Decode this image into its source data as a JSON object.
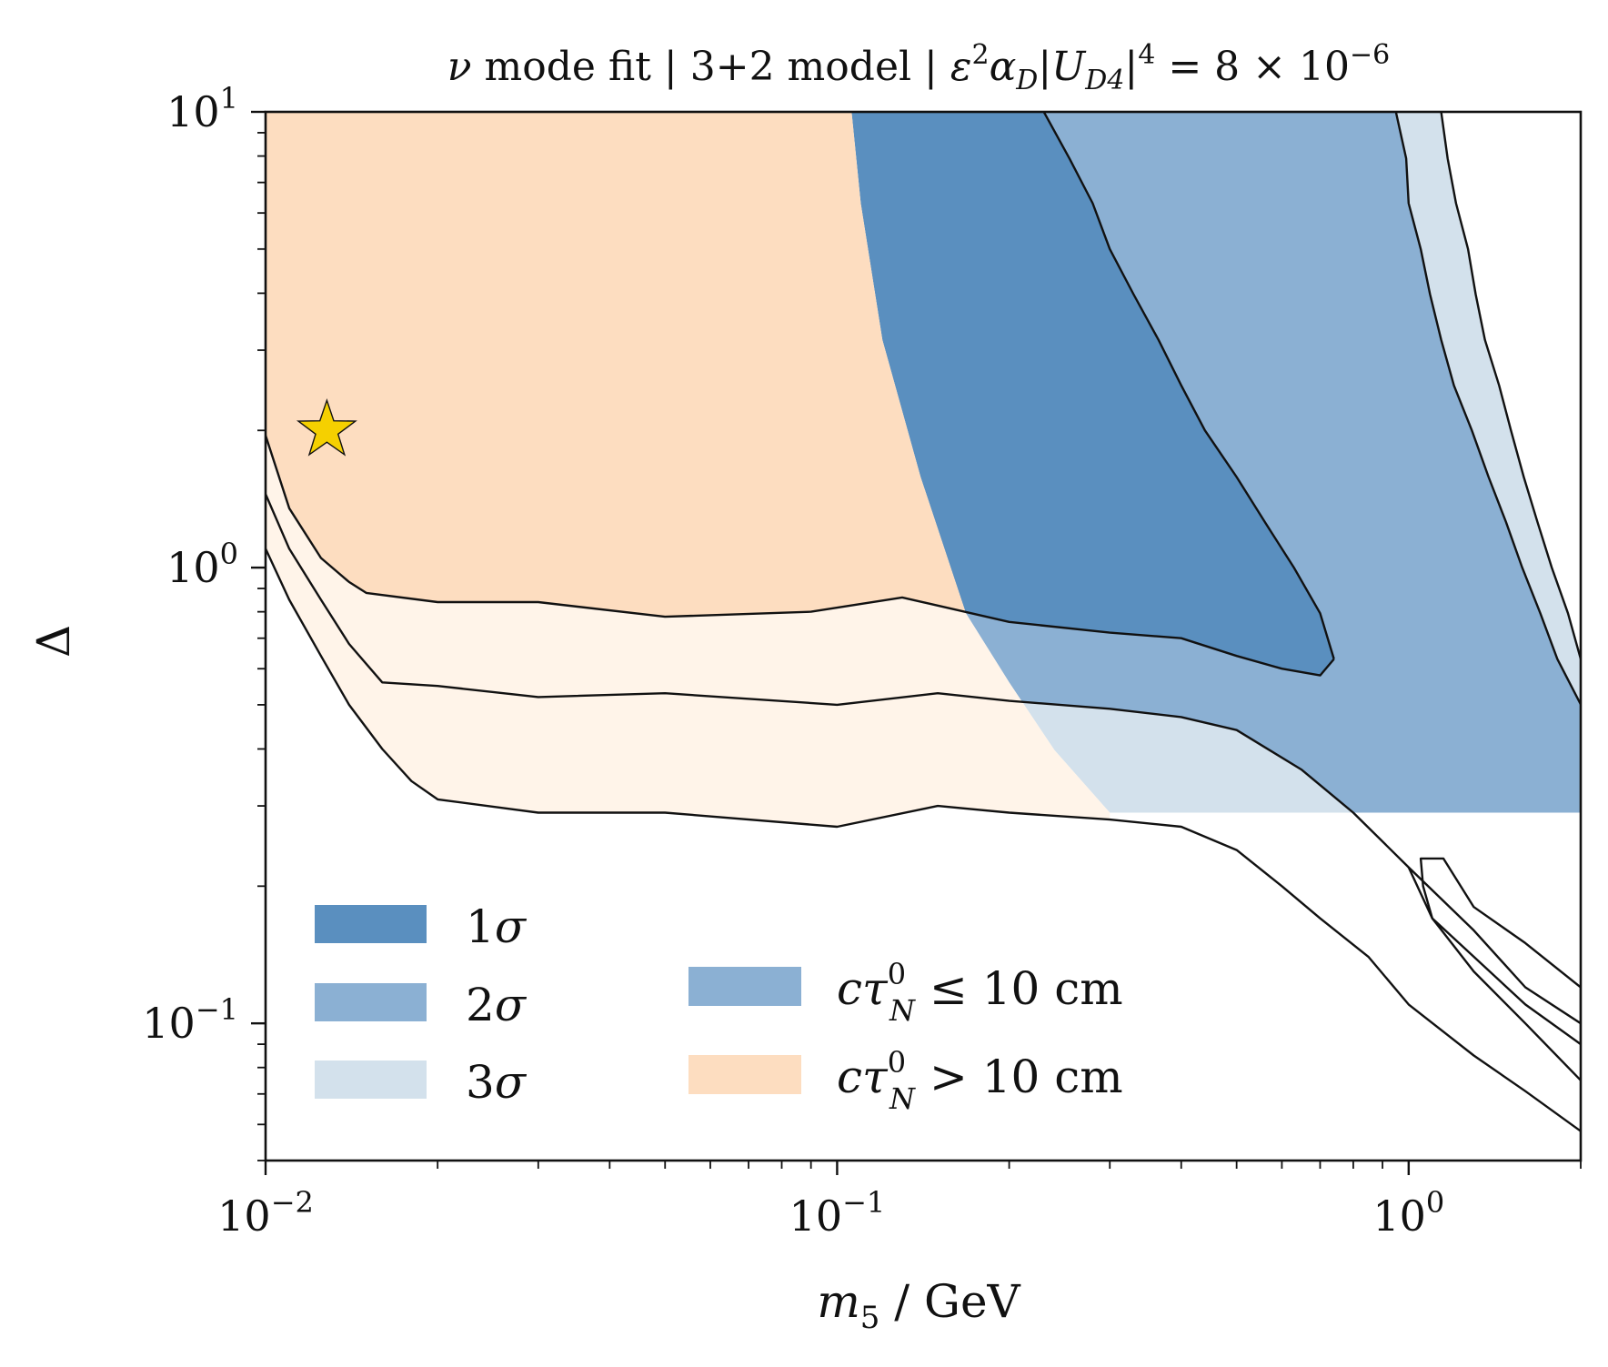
{
  "chart_data": {
    "type": "contour",
    "title": "ν mode fit | 3+2 model | ε²α_D|U_D4|⁴ = 8 × 10⁻⁶",
    "title_parts": {
      "prefix": "ν",
      "text1": " mode fit | 3+2 model | ",
      "eps": "ε",
      "sup2": "2",
      "alpha": "α",
      "subD": "D",
      "U": "|U",
      "subD4": "D4",
      "pipe": "|",
      "sup4": "4",
      "eq": " = 8 × 10",
      "exp": "−6"
    },
    "xlabel": {
      "m": "m",
      "sub": "5",
      "unit": " / GeV"
    },
    "ylabel": "Δ",
    "xscale": "log",
    "yscale": "log",
    "xlim": [
      0.01,
      2.0
    ],
    "ylim": [
      0.05,
      10
    ],
    "x_ticks": [
      {
        "value": 0.01,
        "base": "10",
        "exp": "−2"
      },
      {
        "value": 0.1,
        "base": "10",
        "exp": "−1"
      },
      {
        "value": 1,
        "base": "10",
        "exp": "0"
      }
    ],
    "y_ticks": [
      {
        "value": 0.1,
        "base": "10",
        "exp": "−1"
      },
      {
        "value": 1,
        "base": "10",
        "exp": "0"
      },
      {
        "value": 10,
        "base": "10",
        "exp": "1"
      }
    ],
    "colors": {
      "sigma1": "#5a8fbf",
      "sigma2": "#8bb0d3",
      "sigma3": "#d3e1ec",
      "long_lived_1": "#fdddc0",
      "long_lived_3": "#fff4e9",
      "star": "#f5d000"
    },
    "best_fit": {
      "x": 0.0128,
      "y": 2.0
    },
    "decay_boundary": {
      "name": "cτ⁰_N = 10 cm",
      "points": [
        [
          0.106,
          10
        ],
        [
          0.11,
          6.3
        ],
        [
          0.12,
          3.16
        ],
        [
          0.14,
          1.58
        ],
        [
          0.168,
          0.794
        ],
        [
          0.2,
          0.56
        ],
        [
          0.24,
          0.398
        ],
        [
          0.3,
          0.29
        ]
      ]
    },
    "contours": {
      "sigma3_upper": [
        [
          1.14,
          10
        ],
        [
          1.17,
          7.9
        ],
        [
          1.21,
          6.3
        ],
        [
          1.27,
          5.0
        ],
        [
          1.31,
          3.98
        ],
        [
          1.36,
          3.16
        ],
        [
          1.44,
          2.51
        ],
        [
          1.51,
          2.0
        ],
        [
          1.59,
          1.58
        ],
        [
          1.68,
          1.26
        ],
        [
          1.78,
          1.0
        ],
        [
          1.9,
          0.794
        ],
        [
          2.0,
          0.63
        ]
      ],
      "sigma2_upper": [
        [
          0.95,
          10
        ],
        [
          0.99,
          7.9
        ],
        [
          1.0,
          6.3
        ],
        [
          1.05,
          5.0
        ],
        [
          1.09,
          3.98
        ],
        [
          1.14,
          3.16
        ],
        [
          1.2,
          2.51
        ],
        [
          1.29,
          2.0
        ],
        [
          1.38,
          1.58
        ],
        [
          1.48,
          1.26
        ],
        [
          1.58,
          1.0
        ],
        [
          1.7,
          0.794
        ],
        [
          1.82,
          0.63
        ],
        [
          2.0,
          0.501
        ]
      ],
      "sigma1_upper": [
        [
          0.23,
          10
        ],
        [
          0.255,
          7.9
        ],
        [
          0.28,
          6.3
        ],
        [
          0.3,
          5.0
        ],
        [
          0.33,
          3.98
        ],
        [
          0.365,
          3.16
        ],
        [
          0.4,
          2.51
        ],
        [
          0.44,
          2.0
        ],
        [
          0.5,
          1.58
        ],
        [
          0.56,
          1.26
        ],
        [
          0.63,
          1.0
        ],
        [
          0.7,
          0.794
        ],
        [
          0.74,
          0.63
        ]
      ],
      "sigma1_lower": [
        [
          0.01,
          1.95
        ],
        [
          0.011,
          1.35
        ],
        [
          0.0125,
          1.05
        ],
        [
          0.014,
          0.93
        ],
        [
          0.015,
          0.88
        ],
        [
          0.02,
          0.84
        ],
        [
          0.03,
          0.84
        ],
        [
          0.05,
          0.78
        ],
        [
          0.09,
          0.8
        ],
        [
          0.13,
          0.86
        ],
        [
          0.2,
          0.76
        ],
        [
          0.3,
          0.72
        ],
        [
          0.4,
          0.7
        ],
        [
          0.5,
          0.64
        ],
        [
          0.6,
          0.6
        ],
        [
          0.7,
          0.58
        ],
        [
          0.74,
          0.63
        ]
      ],
      "sigma2_lower": [
        [
          0.01,
          1.45
        ],
        [
          0.011,
          1.1
        ],
        [
          0.0125,
          0.85
        ],
        [
          0.014,
          0.68
        ],
        [
          0.016,
          0.56
        ],
        [
          0.02,
          0.55
        ],
        [
          0.03,
          0.52
        ],
        [
          0.05,
          0.53
        ],
        [
          0.1,
          0.5
        ],
        [
          0.15,
          0.53
        ],
        [
          0.2,
          0.51
        ],
        [
          0.3,
          0.49
        ],
        [
          0.4,
          0.47
        ],
        [
          0.5,
          0.44
        ],
        [
          0.65,
          0.36
        ],
        [
          0.8,
          0.29
        ],
        [
          1.0,
          0.22
        ],
        [
          1.3,
          0.16
        ],
        [
          1.6,
          0.12
        ],
        [
          2.0,
          0.1
        ]
      ],
      "sigma3_lower": [
        [
          0.01,
          1.1
        ],
        [
          0.011,
          0.85
        ],
        [
          0.0125,
          0.64
        ],
        [
          0.014,
          0.5
        ],
        [
          0.016,
          0.4
        ],
        [
          0.018,
          0.34
        ],
        [
          0.02,
          0.31
        ],
        [
          0.03,
          0.29
        ],
        [
          0.05,
          0.29
        ],
        [
          0.1,
          0.27
        ],
        [
          0.15,
          0.3
        ],
        [
          0.2,
          0.29
        ],
        [
          0.3,
          0.28
        ],
        [
          0.4,
          0.27
        ],
        [
          0.5,
          0.24
        ],
        [
          0.6,
          0.2
        ],
        [
          0.7,
          0.17
        ],
        [
          0.85,
          0.14
        ],
        [
          1.0,
          0.11
        ],
        [
          1.3,
          0.085
        ],
        [
          1.6,
          0.071
        ],
        [
          2.0,
          0.058
        ]
      ],
      "sigma1_island": [
        [
          1.05,
          0.23
        ],
        [
          1.15,
          0.23
        ],
        [
          1.3,
          0.18
        ],
        [
          1.6,
          0.15
        ],
        [
          2.0,
          0.12
        ],
        [
          2.0,
          0.09
        ],
        [
          1.6,
          0.11
        ],
        [
          1.3,
          0.14
        ],
        [
          1.1,
          0.17
        ],
        [
          1.06,
          0.2
        ]
      ],
      "sigma2_island_lower": [
        [
          1.0,
          0.22
        ],
        [
          1.1,
          0.17
        ],
        [
          1.3,
          0.13
        ],
        [
          1.6,
          0.1
        ],
        [
          2.0,
          0.075
        ]
      ]
    },
    "legend": [
      {
        "label": "1σ",
        "num": "1",
        "sym": "σ",
        "color": "#5a8fbf"
      },
      {
        "label": "2σ",
        "num": "2",
        "sym": "σ",
        "color": "#8bb0d3"
      },
      {
        "label": "3σ",
        "num": "3",
        "sym": "σ",
        "color": "#d3e1ec"
      },
      {
        "label": "cτ⁰_N ≤ 10 cm",
        "c": "c",
        "tau": "τ",
        "sup": "0",
        "sub": "N",
        "rest": " ≤ 10 cm",
        "color": "#8bb0d3"
      },
      {
        "label": "cτ⁰_N > 10 cm",
        "c": "c",
        "tau": "τ",
        "sup": "0",
        "sub": "N",
        "rest": " > 10 cm",
        "color": "#fdddc0"
      }
    ],
    "legend_placement": "lower-left",
    "grid": false
  }
}
